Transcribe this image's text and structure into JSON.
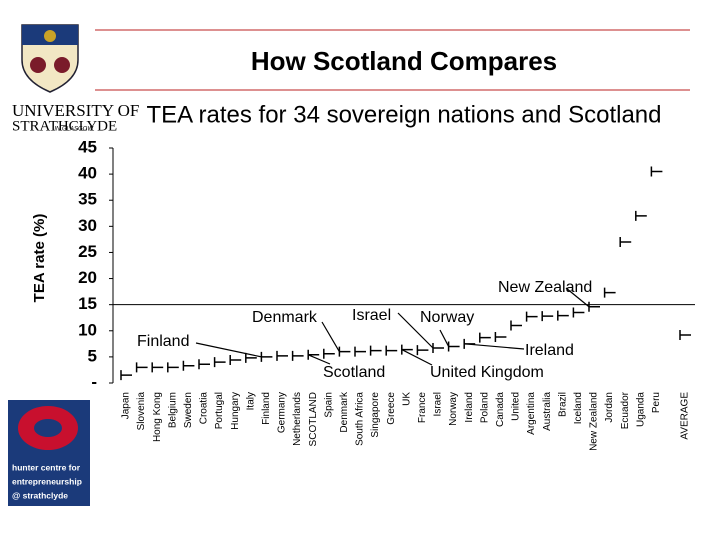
{
  "header": {
    "university": "UNIVERSITY OF",
    "university_name": "STRATHCLYDE",
    "university_city": "IN GLASGOW",
    "centre": [
      "hunter centre for",
      "entrepreneurship",
      "@ strathclyde"
    ]
  },
  "chart_data": {
    "type": "hilo",
    "title": "How Scotland Compares",
    "subtitle": "TEA rates for 34 sovereign nations and Scotland",
    "y_label": "TEA rate (%)",
    "categories": [
      "Japan",
      "Slovenia",
      "Hong Kong",
      "Belgium",
      "Sweden",
      "Croatia",
      "Portugal",
      "Hungary",
      "Italy",
      "Finland",
      "Germany",
      "Netherlands",
      "SCOTLAND",
      "Spain",
      "Denmark",
      "South Africa",
      "Singapore",
      "Greece",
      "UK",
      "France",
      "Israel",
      "Norway",
      "Ireland",
      "Poland",
      "Canada",
      "United",
      "Argentina",
      "Australia",
      "Brazil",
      "Iceland",
      "New Zealand",
      "Jordan",
      "Ecuador",
      "Uganda",
      "Peru",
      "AVERAGE"
    ],
    "values": [
      1.5,
      3,
      3,
      3,
      3.3,
      3.6,
      4,
      4.4,
      4.8,
      5,
      5.2,
      5.2,
      5.4,
      5.6,
      6,
      6,
      6.2,
      6.2,
      6.4,
      6.3,
      6.7,
      7,
      7.5,
      8.7,
      8.8,
      11,
      12.7,
      12.8,
      12.9,
      13.5,
      14.6,
      17.3,
      27,
      32,
      40.5,
      9.2
    ],
    "color": "#000000",
    "ylim": [
      0,
      45
    ],
    "yticks": [
      {
        "value": 0,
        "label": "-"
      },
      5,
      10,
      15,
      20,
      25,
      30,
      35,
      40,
      45
    ],
    "reference_line": 15,
    "annotations": [
      "Finland",
      "Denmark",
      "Israel",
      "Norway",
      "New Zealand",
      "Ireland",
      "Scotland",
      "United Kingdom"
    ]
  }
}
